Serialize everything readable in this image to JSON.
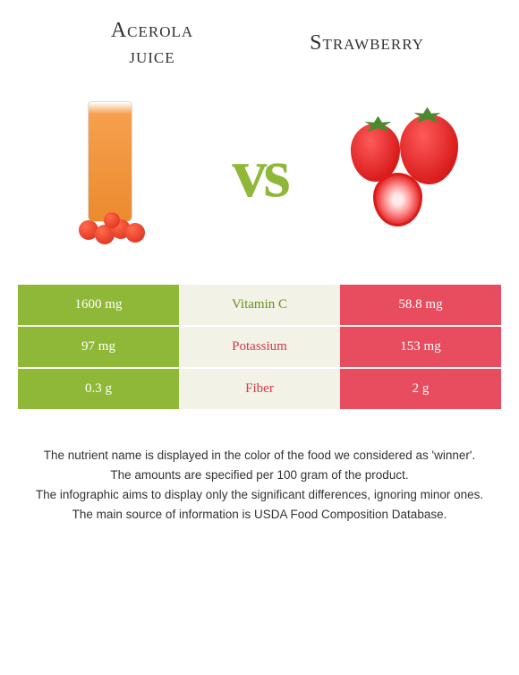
{
  "header": {
    "left_title_line1": "Acerola",
    "left_title_line2": "juice",
    "right_title": "Strawberry",
    "vs": "vs"
  },
  "colors": {
    "green": "#8fb838",
    "red": "#e84c5f",
    "mid_bg": "#f2f2e6",
    "nutrient_green_text": "#6a8f1f",
    "nutrient_red_text": "#d23a4c"
  },
  "table": {
    "rows": [
      {
        "left": "1600 mg",
        "nutrient": "Vitamin C",
        "right": "58.8 mg",
        "winner": "left"
      },
      {
        "left": "97 mg",
        "nutrient": "Potassium",
        "right": "153 mg",
        "winner": "right"
      },
      {
        "left": "0.3 g",
        "nutrient": "Fiber",
        "right": "2 g",
        "winner": "right"
      }
    ]
  },
  "footnotes": {
    "line1": "The nutrient name is displayed in the color of the food we considered as 'winner'.",
    "line2": "The amounts are specified per 100 gram of the product.",
    "line3": "The infographic aims to display only the significant differences, ignoring minor ones.",
    "line4": "The main source of information is USDA Food Composition Database."
  }
}
